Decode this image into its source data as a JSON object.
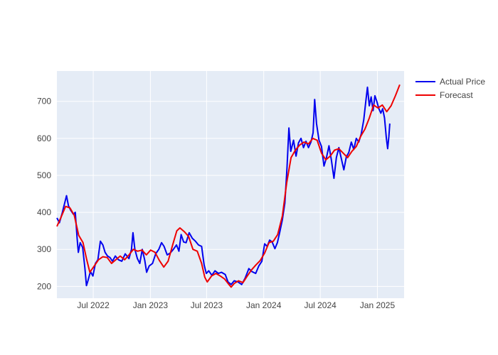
{
  "chart_data": {
    "type": "line",
    "title": "",
    "xlabel": "",
    "ylabel": "",
    "x_range": [
      "2022-03-06",
      "2025-03-28"
    ],
    "ylim": [
      168,
      782
    ],
    "grid": true,
    "legend_position": "top-right",
    "x_ticks": [
      {
        "date": "2022-07-01",
        "label": "Jul 2022"
      },
      {
        "date": "2023-01-01",
        "label": "Jan 2023"
      },
      {
        "date": "2023-07-01",
        "label": "Jul 2023"
      },
      {
        "date": "2024-01-01",
        "label": "Jan 2024"
      },
      {
        "date": "2024-07-01",
        "label": "Jul 2024"
      },
      {
        "date": "2025-01-01",
        "label": "Jan 2025"
      }
    ],
    "y_ticks": [
      200,
      300,
      400,
      500,
      600,
      700
    ],
    "series": [
      {
        "name": "Actual Price",
        "color": "#0000ee",
        "points": [
          [
            "2022-03-06",
            385
          ],
          [
            "2022-03-14",
            372
          ],
          [
            "2022-03-22",
            395
          ],
          [
            "2022-03-31",
            425
          ],
          [
            "2022-04-06",
            445
          ],
          [
            "2022-04-12",
            418
          ],
          [
            "2022-04-20",
            405
          ],
          [
            "2022-04-28",
            395
          ],
          [
            "2022-05-04",
            400
          ],
          [
            "2022-05-10",
            330
          ],
          [
            "2022-05-14",
            292
          ],
          [
            "2022-05-20",
            318
          ],
          [
            "2022-05-28",
            305
          ],
          [
            "2022-06-04",
            250
          ],
          [
            "2022-06-09",
            202
          ],
          [
            "2022-06-14",
            215
          ],
          [
            "2022-06-22",
            240
          ],
          [
            "2022-06-30",
            228
          ],
          [
            "2022-07-08",
            262
          ],
          [
            "2022-07-16",
            272
          ],
          [
            "2022-07-24",
            322
          ],
          [
            "2022-08-01",
            312
          ],
          [
            "2022-08-08",
            292
          ],
          [
            "2022-08-16",
            282
          ],
          [
            "2022-08-24",
            278
          ],
          [
            "2022-09-01",
            268
          ],
          [
            "2022-09-10",
            282
          ],
          [
            "2022-09-20",
            272
          ],
          [
            "2022-10-01",
            268
          ],
          [
            "2022-10-12",
            288
          ],
          [
            "2022-10-24",
            275
          ],
          [
            "2022-11-01",
            300
          ],
          [
            "2022-11-06",
            345
          ],
          [
            "2022-11-12",
            300
          ],
          [
            "2022-11-20",
            275
          ],
          [
            "2022-11-28",
            262
          ],
          [
            "2022-12-06",
            300
          ],
          [
            "2022-12-14",
            270
          ],
          [
            "2022-12-20",
            238
          ],
          [
            "2022-12-28",
            255
          ],
          [
            "2023-01-08",
            262
          ],
          [
            "2023-01-18",
            288
          ],
          [
            "2023-01-28",
            300
          ],
          [
            "2023-02-06",
            318
          ],
          [
            "2023-02-14",
            308
          ],
          [
            "2023-02-24",
            285
          ],
          [
            "2023-03-06",
            290
          ],
          [
            "2023-03-16",
            300
          ],
          [
            "2023-03-26",
            312
          ],
          [
            "2023-04-03",
            295
          ],
          [
            "2023-04-10",
            340
          ],
          [
            "2023-04-18",
            320
          ],
          [
            "2023-04-26",
            318
          ],
          [
            "2023-05-06",
            345
          ],
          [
            "2023-05-16",
            330
          ],
          [
            "2023-05-26",
            322
          ],
          [
            "2023-06-05",
            312
          ],
          [
            "2023-06-15",
            308
          ],
          [
            "2023-06-23",
            258
          ],
          [
            "2023-06-30",
            235
          ],
          [
            "2023-07-08",
            242
          ],
          [
            "2023-07-18",
            230
          ],
          [
            "2023-07-28",
            242
          ],
          [
            "2023-08-08",
            235
          ],
          [
            "2023-08-18",
            238
          ],
          [
            "2023-08-30",
            232
          ],
          [
            "2023-09-08",
            212
          ],
          [
            "2023-09-18",
            205
          ],
          [
            "2023-09-28",
            215
          ],
          [
            "2023-10-10",
            212
          ],
          [
            "2023-10-22",
            205
          ],
          [
            "2023-11-02",
            222
          ],
          [
            "2023-11-14",
            248
          ],
          [
            "2023-11-24",
            240
          ],
          [
            "2023-12-06",
            235
          ],
          [
            "2023-12-16",
            255
          ],
          [
            "2023-12-26",
            268
          ],
          [
            "2024-01-04",
            315
          ],
          [
            "2024-01-12",
            308
          ],
          [
            "2024-01-20",
            325
          ],
          [
            "2024-01-28",
            320
          ],
          [
            "2024-02-06",
            302
          ],
          [
            "2024-02-14",
            318
          ],
          [
            "2024-02-22",
            348
          ],
          [
            "2024-03-01",
            380
          ],
          [
            "2024-03-09",
            425
          ],
          [
            "2024-03-16",
            520
          ],
          [
            "2024-03-22",
            628
          ],
          [
            "2024-03-28",
            565
          ],
          [
            "2024-04-06",
            595
          ],
          [
            "2024-04-14",
            552
          ],
          [
            "2024-04-22",
            588
          ],
          [
            "2024-04-30",
            600
          ],
          [
            "2024-05-08",
            575
          ],
          [
            "2024-05-16",
            592
          ],
          [
            "2024-05-24",
            575
          ],
          [
            "2024-06-01",
            590
          ],
          [
            "2024-06-08",
            615
          ],
          [
            "2024-06-13",
            705
          ],
          [
            "2024-06-19",
            640
          ],
          [
            "2024-06-27",
            595
          ],
          [
            "2024-07-05",
            578
          ],
          [
            "2024-07-13",
            525
          ],
          [
            "2024-07-21",
            548
          ],
          [
            "2024-07-29",
            580
          ],
          [
            "2024-08-06",
            540
          ],
          [
            "2024-08-14",
            492
          ],
          [
            "2024-08-22",
            548
          ],
          [
            "2024-08-30",
            575
          ],
          [
            "2024-09-07",
            545
          ],
          [
            "2024-09-15",
            515
          ],
          [
            "2024-09-23",
            550
          ],
          [
            "2024-10-01",
            562
          ],
          [
            "2024-10-09",
            590
          ],
          [
            "2024-10-17",
            570
          ],
          [
            "2024-10-25",
            600
          ],
          [
            "2024-11-02",
            590
          ],
          [
            "2024-11-10",
            612
          ],
          [
            "2024-11-18",
            650
          ],
          [
            "2024-11-24",
            695
          ],
          [
            "2024-11-30",
            738
          ],
          [
            "2024-12-06",
            688
          ],
          [
            "2024-12-12",
            712
          ],
          [
            "2024-12-18",
            675
          ],
          [
            "2024-12-24",
            715
          ],
          [
            "2024-12-30",
            700
          ],
          [
            "2025-01-06",
            680
          ],
          [
            "2025-01-12",
            668
          ],
          [
            "2025-01-18",
            680
          ],
          [
            "2025-01-24",
            655
          ],
          [
            "2025-01-30",
            600
          ],
          [
            "2025-02-03",
            572
          ],
          [
            "2025-02-07",
            605
          ],
          [
            "2025-02-10",
            640
          ]
        ]
      },
      {
        "name": "Forecast",
        "color": "#ee0000",
        "points": [
          [
            "2022-03-06",
            362
          ],
          [
            "2022-03-20",
            388
          ],
          [
            "2022-04-03",
            416
          ],
          [
            "2022-04-17",
            412
          ],
          [
            "2022-05-01",
            392
          ],
          [
            "2022-05-15",
            338
          ],
          [
            "2022-05-29",
            318
          ],
          [
            "2022-06-10",
            272
          ],
          [
            "2022-06-20",
            238
          ],
          [
            "2022-07-04",
            255
          ],
          [
            "2022-07-18",
            272
          ],
          [
            "2022-08-01",
            280
          ],
          [
            "2022-08-15",
            278
          ],
          [
            "2022-08-29",
            262
          ],
          [
            "2022-09-12",
            272
          ],
          [
            "2022-09-26",
            282
          ],
          [
            "2022-10-10",
            272
          ],
          [
            "2022-10-24",
            285
          ],
          [
            "2022-11-07",
            300
          ],
          [
            "2022-11-21",
            295
          ],
          [
            "2022-12-05",
            298
          ],
          [
            "2022-12-19",
            285
          ],
          [
            "2023-01-02",
            298
          ],
          [
            "2023-01-16",
            292
          ],
          [
            "2023-01-30",
            270
          ],
          [
            "2023-02-13",
            252
          ],
          [
            "2023-02-27",
            268
          ],
          [
            "2023-03-13",
            310
          ],
          [
            "2023-03-27",
            350
          ],
          [
            "2023-04-06",
            358
          ],
          [
            "2023-04-20",
            348
          ],
          [
            "2023-05-04",
            335
          ],
          [
            "2023-05-18",
            300
          ],
          [
            "2023-06-01",
            295
          ],
          [
            "2023-06-15",
            262
          ],
          [
            "2023-06-25",
            225
          ],
          [
            "2023-07-03",
            212
          ],
          [
            "2023-07-17",
            228
          ],
          [
            "2023-07-31",
            235
          ],
          [
            "2023-08-14",
            228
          ],
          [
            "2023-08-28",
            220
          ],
          [
            "2023-09-11",
            205
          ],
          [
            "2023-09-18",
            198
          ],
          [
            "2023-09-28",
            208
          ],
          [
            "2023-10-12",
            215
          ],
          [
            "2023-10-26",
            210
          ],
          [
            "2023-11-09",
            228
          ],
          [
            "2023-11-23",
            245
          ],
          [
            "2023-12-07",
            258
          ],
          [
            "2023-12-21",
            270
          ],
          [
            "2024-01-04",
            290
          ],
          [
            "2024-01-18",
            318
          ],
          [
            "2024-02-01",
            322
          ],
          [
            "2024-02-15",
            340
          ],
          [
            "2024-03-01",
            390
          ],
          [
            "2024-03-15",
            480
          ],
          [
            "2024-03-29",
            548
          ],
          [
            "2024-04-12",
            568
          ],
          [
            "2024-04-26",
            582
          ],
          [
            "2024-05-10",
            590
          ],
          [
            "2024-05-24",
            585
          ],
          [
            "2024-06-07",
            600
          ],
          [
            "2024-06-21",
            595
          ],
          [
            "2024-07-05",
            560
          ],
          [
            "2024-07-19",
            542
          ],
          [
            "2024-08-02",
            552
          ],
          [
            "2024-08-16",
            568
          ],
          [
            "2024-08-30",
            572
          ],
          [
            "2024-09-13",
            560
          ],
          [
            "2024-09-27",
            548
          ],
          [
            "2024-10-11",
            565
          ],
          [
            "2024-10-25",
            578
          ],
          [
            "2024-11-08",
            605
          ],
          [
            "2024-11-22",
            625
          ],
          [
            "2024-12-06",
            655
          ],
          [
            "2024-12-20",
            690
          ],
          [
            "2025-01-03",
            682
          ],
          [
            "2025-01-17",
            690
          ],
          [
            "2025-01-31",
            672
          ],
          [
            "2025-02-14",
            688
          ],
          [
            "2025-02-28",
            715
          ],
          [
            "2025-03-14",
            745
          ]
        ]
      }
    ]
  }
}
